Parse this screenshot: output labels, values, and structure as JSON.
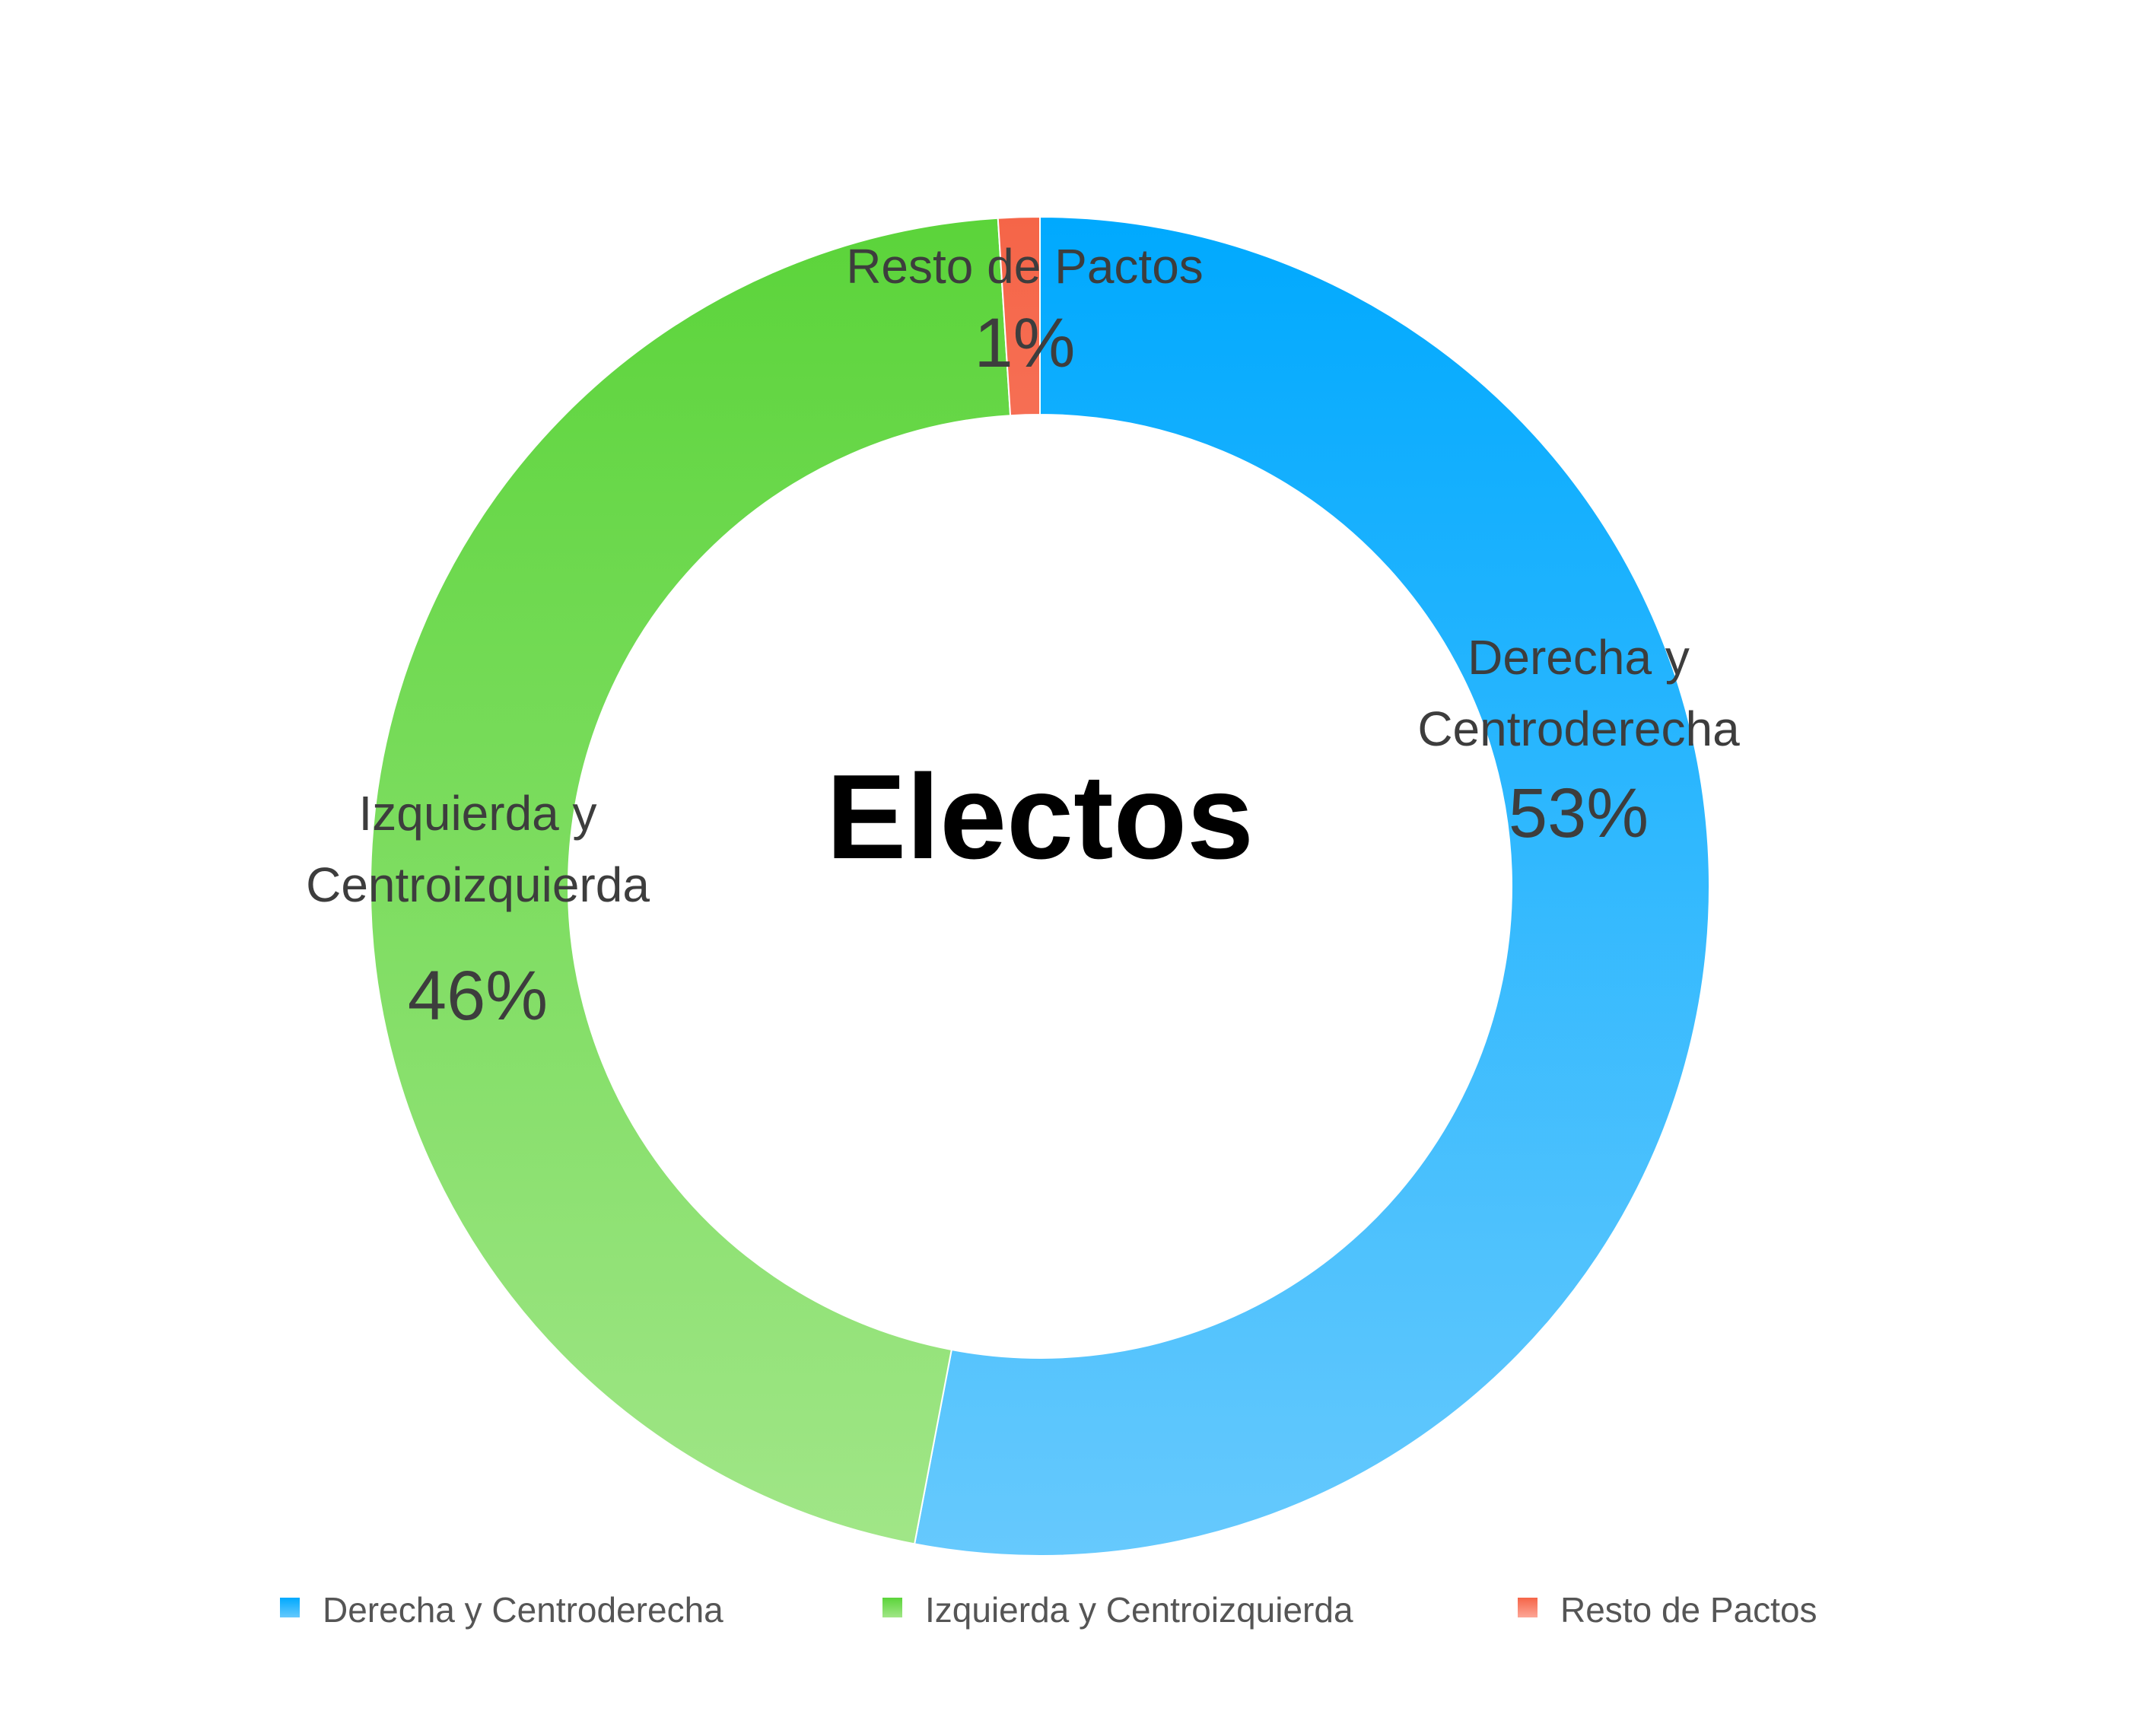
{
  "chart_data": {
    "type": "pie",
    "variant": "donut",
    "title": "Electos",
    "categories": [
      "Derecha y Centroderecha",
      "Izquierda y Centroizquierda",
      "Resto de Pactos"
    ],
    "label_lines": [
      [
        "Derecha y",
        "Centroderecha"
      ],
      [
        "Izquierda y",
        "Centroizquierda"
      ],
      [
        "Resto de Pactos"
      ]
    ],
    "values": [
      53,
      46,
      1
    ],
    "value_labels": [
      "53%",
      "46%",
      "1%"
    ],
    "colors": [
      {
        "top": "#00a9fe",
        "bottom": "#66c9fd"
      },
      {
        "top": "#5bd43a",
        "bottom": "#a1e688"
      },
      {
        "top": "#f56548",
        "bottom": "#fda697"
      }
    ],
    "legend": {
      "position": "bottom",
      "entries": [
        "Derecha y Centroderecha",
        "Izquierda y Centroizquierda",
        "Resto de Pactos"
      ]
    }
  }
}
